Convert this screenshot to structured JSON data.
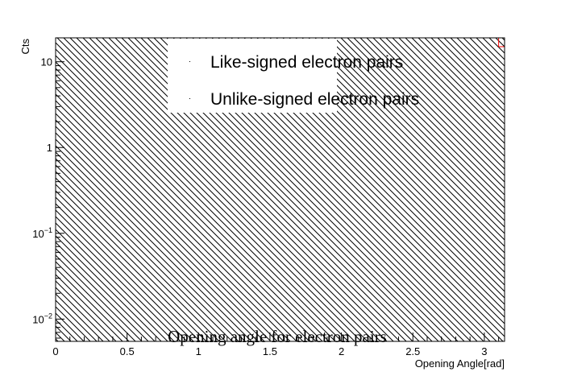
{
  "chart_data": {
    "type": "area",
    "title": "Opening angle for electron pairs",
    "xlabel": "Opening Angle[rad]",
    "ylabel": "Cts",
    "xlim": [
      0,
      3.1416
    ],
    "ylim": [
      0.0055,
      19
    ],
    "yscale": "log",
    "grid": false,
    "legend_position": "top-center",
    "x_ticks": [
      {
        "value": 0,
        "label": "0"
      },
      {
        "value": 0.5,
        "label": "0.5"
      },
      {
        "value": 1,
        "label": "1"
      },
      {
        "value": 1.5,
        "label": "1.5"
      },
      {
        "value": 2,
        "label": "2"
      },
      {
        "value": 2.5,
        "label": "2.5"
      },
      {
        "value": 3,
        "label": "3"
      }
    ],
    "y_ticks": [
      {
        "value": 0.01,
        "base": "10",
        "exp": "−2"
      },
      {
        "value": 0.1,
        "base": "10",
        "exp": "−1"
      },
      {
        "value": 1,
        "base": "1",
        "exp": ""
      },
      {
        "value": 10,
        "base": "10",
        "exp": ""
      }
    ],
    "series": [
      {
        "name": "Like-signed electron pairs",
        "color": "#000000",
        "fill": "hatched",
        "x": [
          0,
          3.1416
        ],
        "values": [
          19,
          19
        ]
      },
      {
        "name": "Unlike-signed electron pairs",
        "color": "#ff0000",
        "fill": "none",
        "x": [
          0,
          3.1,
          3.1,
          3.1416
        ],
        "values": [
          19,
          19,
          15,
          15
        ]
      }
    ]
  }
}
